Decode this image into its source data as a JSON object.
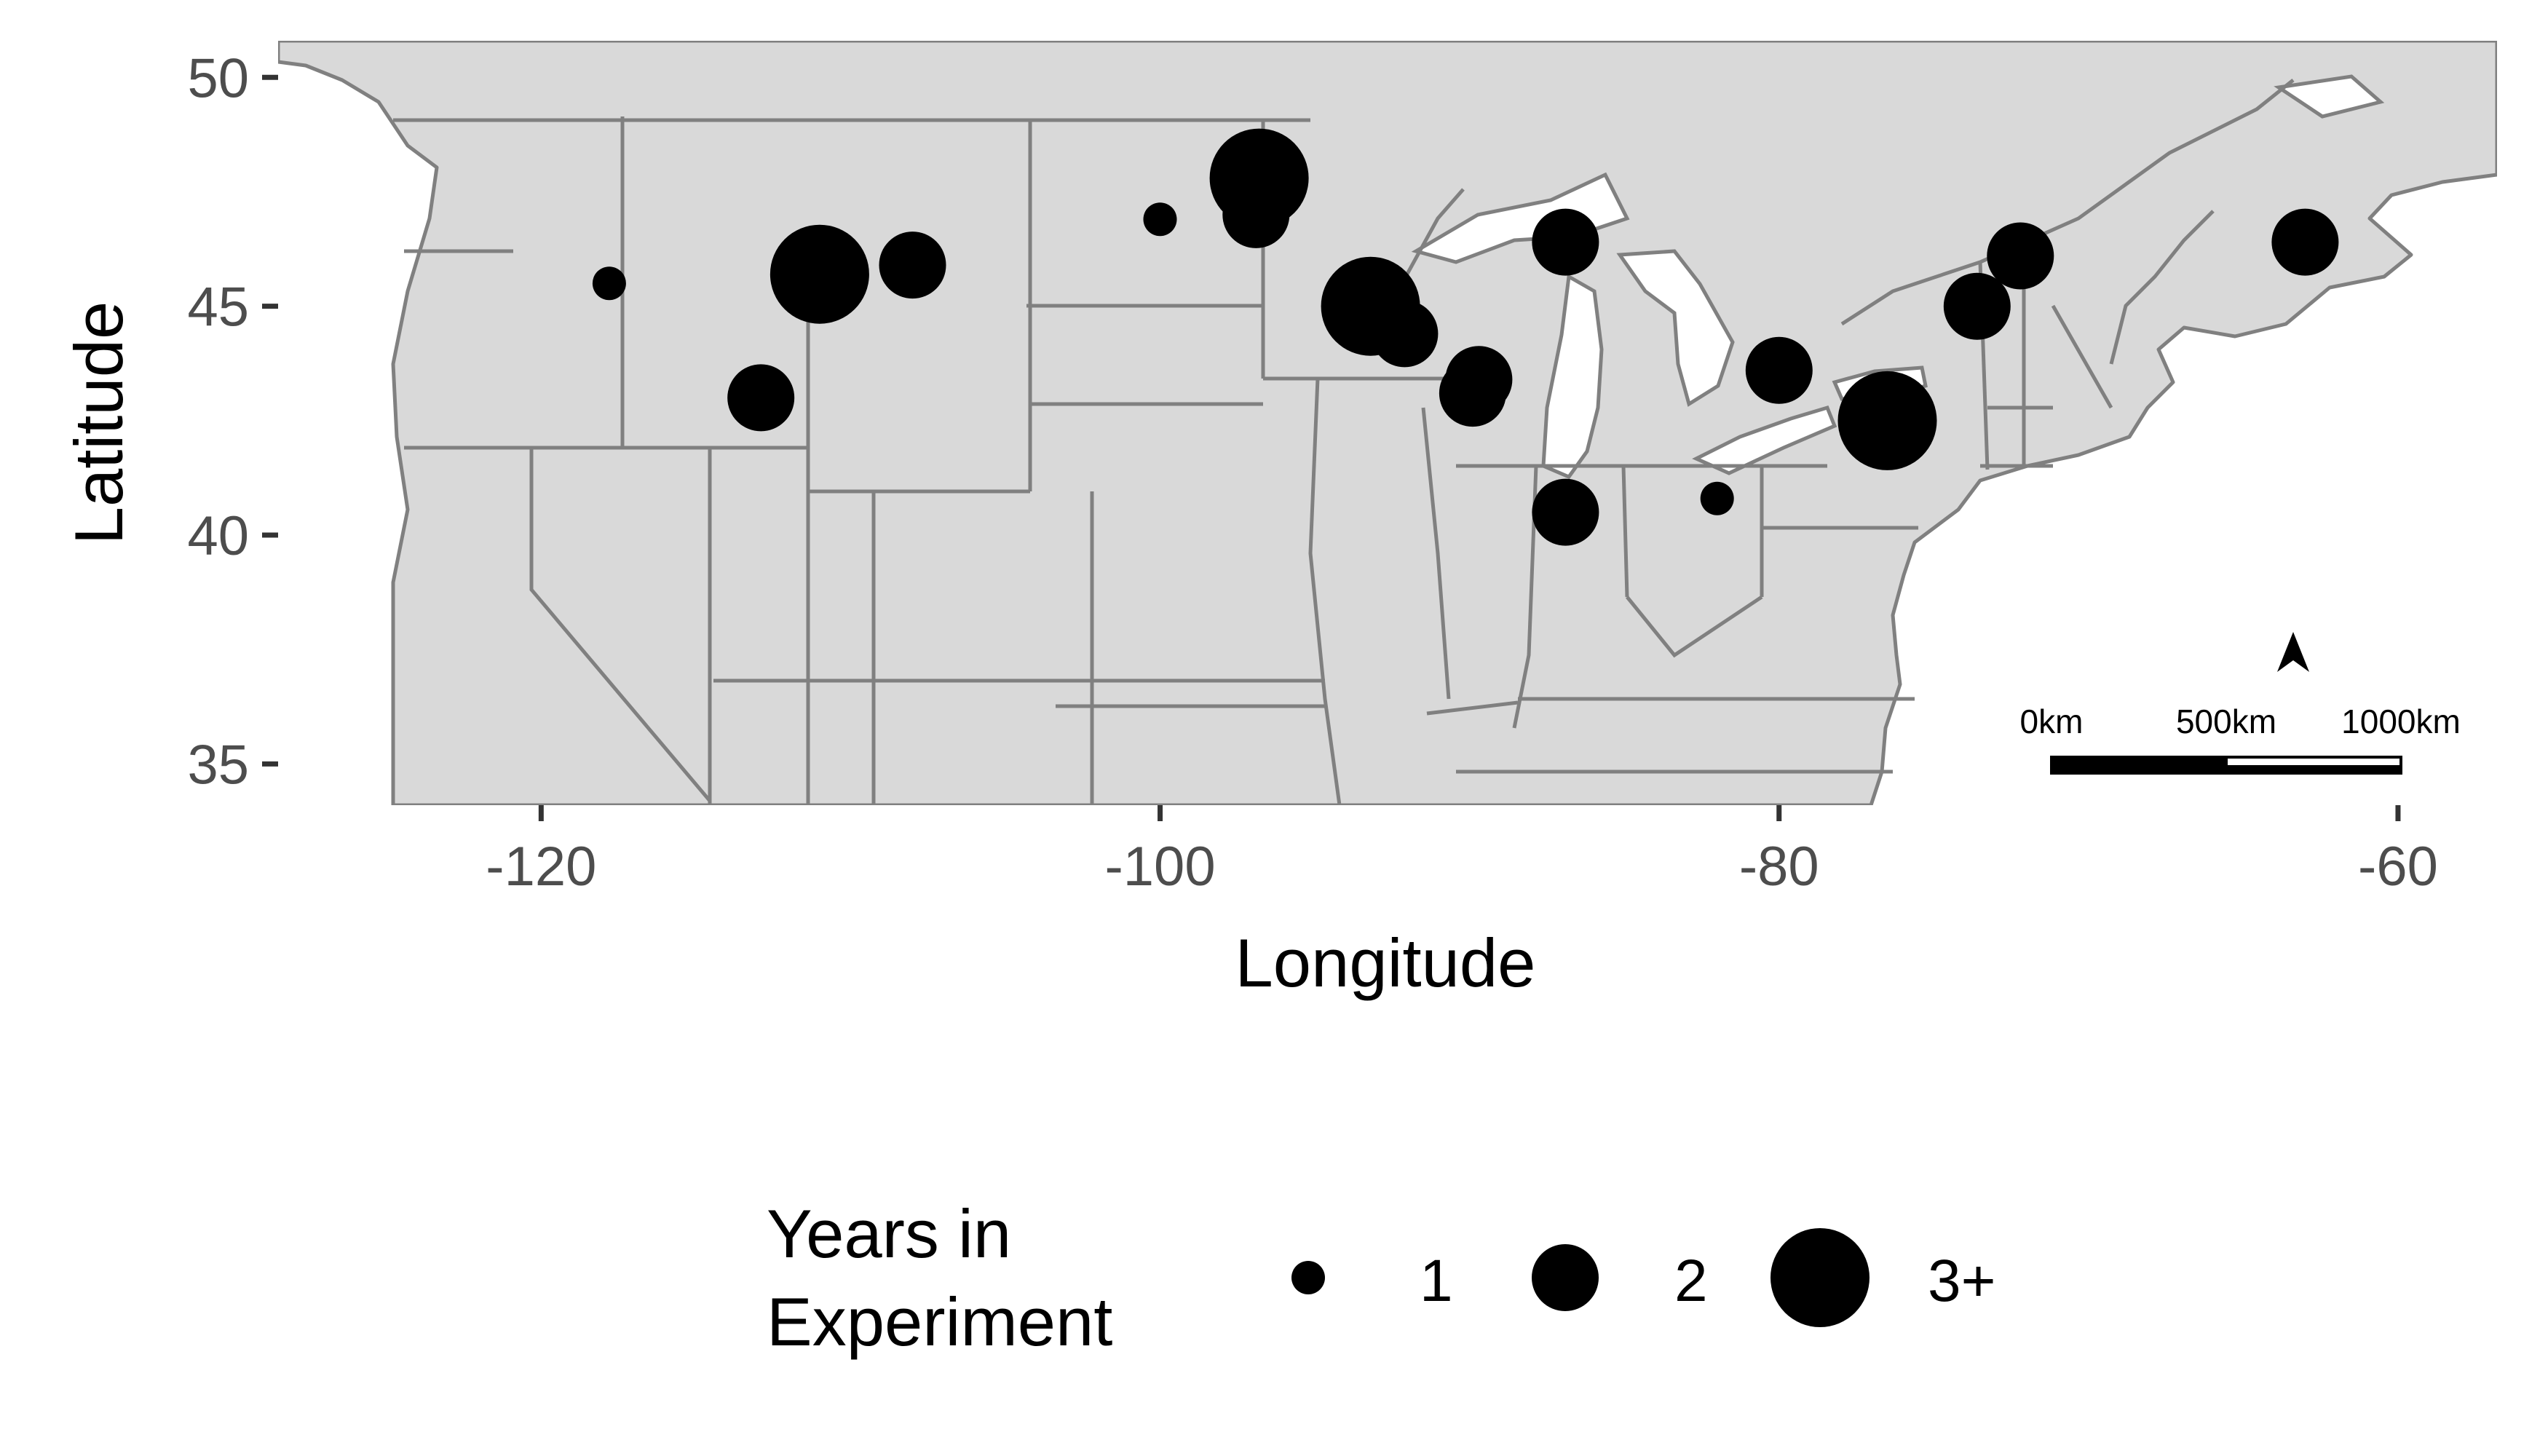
{
  "chart_data": {
    "type": "map-bubble",
    "xlabel": "Longitude",
    "ylabel": "Latitude",
    "xlim": [
      -128.5,
      -56.8
    ],
    "ylim": [
      34.1,
      50.8
    ],
    "xticks": [
      -120,
      -100,
      -80,
      -60
    ],
    "yticks": [
      35,
      40,
      45,
      50
    ],
    "colors": {
      "land": "#d9d9d9",
      "border": "#808080",
      "ocean": "#ffffff",
      "point": "#000000",
      "axis_text": "#4d4d4d"
    },
    "points": [
      {
        "lon": -117.8,
        "lat": 45.5,
        "years": "1"
      },
      {
        "lon": -112.9,
        "lat": 43.0,
        "years": "2"
      },
      {
        "lon": -111.0,
        "lat": 45.7,
        "years": "3+"
      },
      {
        "lon": -108.0,
        "lat": 45.9,
        "years": "2"
      },
      {
        "lon": -100.0,
        "lat": 46.9,
        "years": "1"
      },
      {
        "lon": -96.9,
        "lat": 47.0,
        "years": "2"
      },
      {
        "lon": -96.8,
        "lat": 47.8,
        "years": "3+"
      },
      {
        "lon": -93.2,
        "lat": 45.0,
        "years": "3+"
      },
      {
        "lon": -92.1,
        "lat": 44.4,
        "years": "2"
      },
      {
        "lon": -89.7,
        "lat": 43.4,
        "years": "2"
      },
      {
        "lon": -89.9,
        "lat": 43.1,
        "years": "2"
      },
      {
        "lon": -86.9,
        "lat": 46.4,
        "years": "2"
      },
      {
        "lon": -86.9,
        "lat": 40.5,
        "years": "2"
      },
      {
        "lon": -82.0,
        "lat": 40.8,
        "years": "1"
      },
      {
        "lon": -80.0,
        "lat": 43.6,
        "years": "2"
      },
      {
        "lon": -76.5,
        "lat": 42.5,
        "years": "3+"
      },
      {
        "lon": -73.6,
        "lat": 45.0,
        "years": "2"
      },
      {
        "lon": -72.2,
        "lat": 46.1,
        "years": "2"
      },
      {
        "lon": -63.0,
        "lat": 46.4,
        "years": "2"
      }
    ],
    "legend": {
      "title_line1": "Years in",
      "title_line2": "Experiment",
      "items": [
        {
          "label": "1"
        },
        {
          "label": "2"
        },
        {
          "label": "3+"
        }
      ]
    },
    "scale_bar": {
      "labels": [
        "0km",
        "500km",
        "1000km"
      ]
    }
  }
}
